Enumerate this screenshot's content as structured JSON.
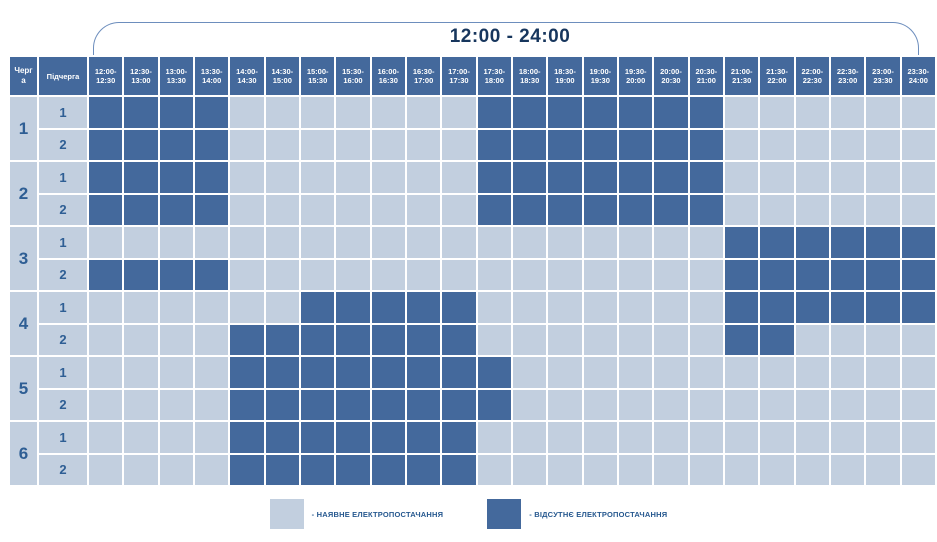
{
  "chart_data": {
    "type": "heatmap",
    "title": "12:00 - 24:00",
    "row_header_labels": [
      "Черга",
      "Підчерга"
    ],
    "columns": [
      "12:00-12:30",
      "12:30-13:00",
      "13:00-13:30",
      "13:30-14:00",
      "14:00-14:30",
      "14:30-15:00",
      "15:00-15:30",
      "15:30-16:00",
      "16:00-16:30",
      "16:30-17:00",
      "17:00-17:30",
      "17:30-18:00",
      "18:00-18:30",
      "18:30-19:00",
      "19:00-19:30",
      "19:30-20:00",
      "20:00-20:30",
      "20:30-21:00",
      "21:00-21:30",
      "21:30-22:00",
      "22:00-22:30",
      "22:30-23:00",
      "23:00-23:30",
      "23:30-24:00"
    ],
    "cell_values_meaning": {
      "0": "наявне електропостачання",
      "1": "відсутнє електропостачання"
    },
    "rows": [
      {
        "queue": "1",
        "subqueue": "1",
        "cells": [
          1,
          1,
          1,
          1,
          0,
          0,
          0,
          0,
          0,
          0,
          0,
          1,
          1,
          1,
          1,
          1,
          1,
          1,
          0,
          0,
          0,
          0,
          0,
          0
        ]
      },
      {
        "queue": "1",
        "subqueue": "2",
        "cells": [
          1,
          1,
          1,
          1,
          0,
          0,
          0,
          0,
          0,
          0,
          0,
          1,
          1,
          1,
          1,
          1,
          1,
          1,
          0,
          0,
          0,
          0,
          0,
          0
        ]
      },
      {
        "queue": "2",
        "subqueue": "1",
        "cells": [
          1,
          1,
          1,
          1,
          0,
          0,
          0,
          0,
          0,
          0,
          0,
          1,
          1,
          1,
          1,
          1,
          1,
          1,
          0,
          0,
          0,
          0,
          0,
          0
        ]
      },
      {
        "queue": "2",
        "subqueue": "2",
        "cells": [
          1,
          1,
          1,
          1,
          0,
          0,
          0,
          0,
          0,
          0,
          0,
          1,
          1,
          1,
          1,
          1,
          1,
          1,
          0,
          0,
          0,
          0,
          0,
          0
        ]
      },
      {
        "queue": "3",
        "subqueue": "1",
        "cells": [
          0,
          0,
          0,
          0,
          0,
          0,
          0,
          0,
          0,
          0,
          0,
          0,
          0,
          0,
          0,
          0,
          0,
          0,
          1,
          1,
          1,
          1,
          1,
          1
        ]
      },
      {
        "queue": "3",
        "subqueue": "2",
        "cells": [
          1,
          1,
          1,
          1,
          0,
          0,
          0,
          0,
          0,
          0,
          0,
          0,
          0,
          0,
          0,
          0,
          0,
          0,
          1,
          1,
          1,
          1,
          1,
          1
        ]
      },
      {
        "queue": "4",
        "subqueue": "1",
        "cells": [
          0,
          0,
          0,
          0,
          0,
          0,
          1,
          1,
          1,
          1,
          1,
          0,
          0,
          0,
          0,
          0,
          0,
          0,
          1,
          1,
          1,
          1,
          1,
          1
        ]
      },
      {
        "queue": "4",
        "subqueue": "2",
        "cells": [
          0,
          0,
          0,
          0,
          1,
          1,
          1,
          1,
          1,
          1,
          1,
          0,
          0,
          0,
          0,
          0,
          0,
          0,
          1,
          1,
          0,
          0,
          0,
          0
        ]
      },
      {
        "queue": "5",
        "subqueue": "1",
        "cells": [
          0,
          0,
          0,
          0,
          1,
          1,
          1,
          1,
          1,
          1,
          1,
          1,
          0,
          0,
          0,
          0,
          0,
          0,
          0,
          0,
          0,
          0,
          0,
          0
        ]
      },
      {
        "queue": "5",
        "subqueue": "2",
        "cells": [
          0,
          0,
          0,
          0,
          1,
          1,
          1,
          1,
          1,
          1,
          1,
          1,
          0,
          0,
          0,
          0,
          0,
          0,
          0,
          0,
          0,
          0,
          0,
          0
        ]
      },
      {
        "queue": "6",
        "subqueue": "1",
        "cells": [
          0,
          0,
          0,
          0,
          1,
          1,
          1,
          1,
          1,
          1,
          1,
          0,
          0,
          0,
          0,
          0,
          0,
          0,
          0,
          0,
          0,
          0,
          0,
          0
        ]
      },
      {
        "queue": "6",
        "subqueue": "2",
        "cells": [
          0,
          0,
          0,
          0,
          1,
          1,
          1,
          1,
          1,
          1,
          1,
          0,
          0,
          0,
          0,
          0,
          0,
          0,
          0,
          0,
          0,
          0,
          0,
          0
        ]
      }
    ],
    "legend": [
      {
        "swatch": "light",
        "label": "- НАЯВНЕ ЕЛЕКТРОПОСТАЧАННЯ"
      },
      {
        "swatch": "dark",
        "label": "- ВІДСУТНЄ ЕЛЕКТРОПОСТАЧАННЯ"
      }
    ],
    "colors": {
      "power_on": "#C2CFDF",
      "power_off": "#44699C",
      "header_bg": "#44699C",
      "header_text": "#FFFFFF",
      "number_text": "#2E5E94",
      "title_text": "#17365D",
      "brace_line": "#6D8EBD"
    },
    "layout_hints": {
      "grid": true,
      "legend_position": "bottom",
      "x_axis": "time 12:00-24:00, 30-min slots",
      "y_axis": "6 queues × 2 subqueues"
    }
  }
}
